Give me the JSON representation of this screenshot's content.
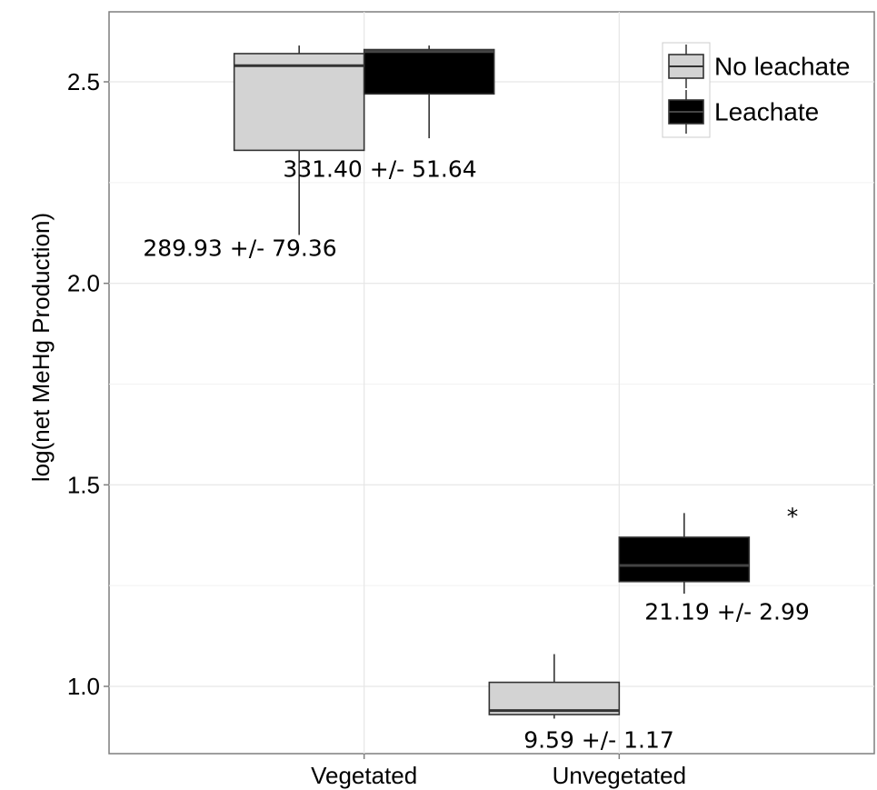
{
  "chart_data": {
    "type": "box",
    "ylabel": "log(net MeHg Production)",
    "xlabel": "",
    "ylim": [
      0.84,
      2.67
    ],
    "yticks": [
      "1.0",
      "1.5",
      "2.0",
      "2.5"
    ],
    "categories": [
      "Vegetated",
      "Unvegetated"
    ],
    "legend_position": "top-right",
    "grid": true,
    "series": [
      {
        "name": "No leachate",
        "color": "#d3d3d3",
        "boxes": [
          {
            "category": "Vegetated",
            "min": 2.12,
            "q1": 2.33,
            "median": 2.54,
            "q3": 2.57,
            "max": 2.59
          },
          {
            "category": "Unvegetated",
            "min": 0.92,
            "q1": 0.93,
            "median": 0.94,
            "q3": 1.01,
            "max": 1.08
          }
        ]
      },
      {
        "name": "Leachate",
        "color": "#000000",
        "boxes": [
          {
            "category": "Vegetated",
            "min": 2.36,
            "q1": 2.47,
            "median": 2.575,
            "q3": 2.58,
            "max": 2.59
          },
          {
            "category": "Unvegetated",
            "min": 1.23,
            "q1": 1.26,
            "median": 1.3,
            "q3": 1.37,
            "max": 1.43
          }
        ]
      }
    ],
    "annotations": [
      {
        "text": "289.93 +/- 79.36",
        "series": "No leachate",
        "category": "Vegetated"
      },
      {
        "text": "331.40 +/- 51.64",
        "series": "Leachate",
        "category": "Vegetated"
      },
      {
        "text": "9.59 +/- 1.17",
        "series": "No leachate",
        "category": "Unvegetated"
      },
      {
        "text": "21.19 +/- 2.99",
        "series": "Leachate",
        "category": "Unvegetated"
      },
      {
        "text": "*",
        "series": "Leachate",
        "category": "Unvegetated"
      }
    ]
  }
}
